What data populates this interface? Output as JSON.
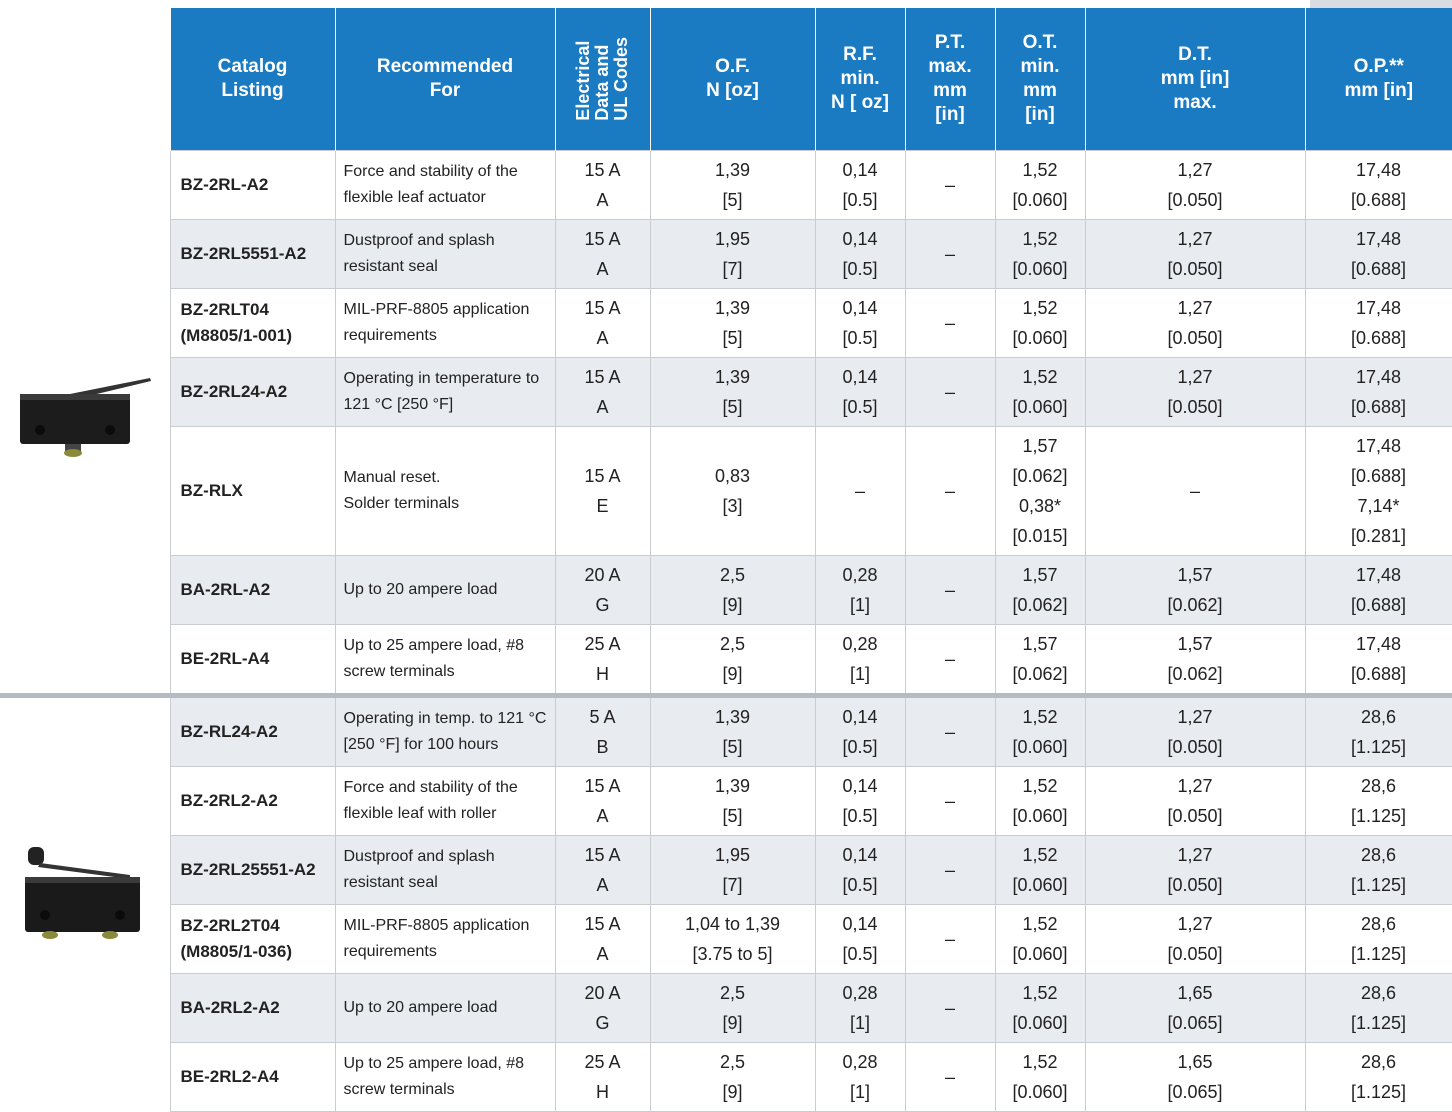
{
  "table": {
    "header": [
      "Catalog\nListing",
      "Recommended\nFor",
      "Electrical\nData and\nUL Codes",
      "O.F.\nN [oz]",
      "R.F.\nmin.\nN [ oz]",
      "P.T.\nmax.\nmm\n[in]",
      "O.T.\nmin.\nmm\n[in]",
      "D.T.\nmm [in]\nmax.",
      "O.P.**\nmm [in]"
    ],
    "groups": [
      {
        "rows": [
          [
            "BZ-2RL-A2",
            "Force and stability of the flexible leaf actuator",
            "15 A\nA",
            "1,39\n[5]",
            "0,14\n[0.5]",
            "–",
            "1,52\n[0.060]",
            "1,27\n[0.050]",
            "17,48\n[0.688]"
          ],
          [
            "BZ-2RL5551-A2",
            "Dustproof and splash resistant seal",
            "15 A\nA",
            "1,95\n[7]",
            "0,14\n[0.5]",
            "–",
            "1,52\n[0.060]",
            "1,27\n[0.050]",
            "17,48\n[0.688]"
          ],
          [
            "BZ-2RLT04\n(M8805/1-001)",
            "MIL-PRF-8805 application requirements",
            "15 A\nA",
            "1,39\n[5]",
            "0,14\n[0.5]",
            "–",
            "1,52\n[0.060]",
            "1,27\n[0.050]",
            "17,48\n[0.688]"
          ],
          [
            "BZ-2RL24-A2",
            "Operating in temperature to 121 °C [250 °F]",
            "15 A\nA",
            "1,39\n[5]",
            "0,14\n[0.5]",
            "–",
            "1,52\n[0.060]",
            "1,27\n[0.050]",
            "17,48\n[0.688]"
          ],
          [
            "BZ-RLX",
            "Manual reset.\nSolder terminals",
            "15 A\nE",
            "0,83\n[3]",
            "–",
            "–",
            "1,57\n[0.062]\n0,38*\n[0.015]",
            "–",
            "17,48\n[0.688]\n7,14*\n[0.281]"
          ],
          [
            "BA-2RL-A2",
            "Up to 20 ampere load",
            "20 A\nG",
            "2,5\n[9]",
            "0,28\n[1]",
            "–",
            "1,57\n[0.062]",
            "1,57\n[0.062]",
            "17,48\n[0.688]"
          ],
          [
            "BE-2RL-A4",
            "Up to 25 ampere load, #8 screw terminals",
            "25 A\nH",
            "2,5\n[9]",
            "0,28\n[1]",
            "–",
            "1,57\n[0.062]",
            "1,57\n[0.062]",
            "17,48\n[0.688]"
          ]
        ]
      },
      {
        "rows": [
          [
            "BZ-RL24-A2",
            "Operating in temp. to 121 °C [250 °F] for 100 hours",
            "5 A\nB",
            "1,39\n[5]",
            "0,14\n[0.5]",
            "–",
            "1,52\n[0.060]",
            "1,27\n[0.050]",
            "28,6\n[1.125]"
          ],
          [
            "BZ-2RL2-A2",
            "Force and stability of the flexible leaf with roller",
            "15 A\nA",
            "1,39\n[5]",
            "0,14\n[0.5]",
            "–",
            "1,52\n[0.060]",
            "1,27\n[0.050]",
            "28,6\n[1.125]"
          ],
          [
            "BZ-2RL25551-A2",
            "Dustproof and splash resistant seal",
            "15 A\nA",
            "1,95\n[7]",
            "0,14\n[0.5]",
            "–",
            "1,52\n[0.060]",
            "1,27\n[0.050]",
            "28,6\n[1.125]"
          ],
          [
            "BZ-2RL2T04\n(M8805/1-036)",
            "MIL-PRF-8805 application requirements",
            "15 A\nA",
            "1,04 to 1,39\n[3.75 to 5]",
            "0,14\n[0.5]",
            "–",
            "1,52\n[0.060]",
            "1,27\n[0.050]",
            "28,6\n[1.125]"
          ],
          [
            "BA-2RL2-A2",
            "Up to 20 ampere load",
            "20 A\nG",
            "2,5\n[9]",
            "0,28\n[1]",
            "–",
            "1,52\n[0.060]",
            "1,65\n[0.065]",
            "28,6\n[1.125]"
          ],
          [
            "BE-2RL2-A4",
            "Up to 25 ampere load, #8 screw terminals",
            "25 A\nH",
            "2,5\n[9]",
            "0,28\n[1]",
            "–",
            "1,52\n[0.060]",
            "1,65\n[0.065]",
            "28,6\n[1.125]"
          ]
        ]
      }
    ]
  }
}
